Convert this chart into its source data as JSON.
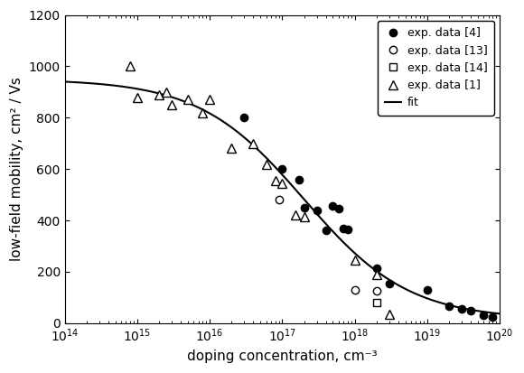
{
  "title": "",
  "xlabel": "doping concentration, cm⁻³",
  "ylabel": "low-field mobility, cm² / Vs",
  "xlim": [
    100000000000000.0,
    1e+20
  ],
  "ylim": [
    0,
    1200
  ],
  "yticks": [
    0,
    200,
    400,
    600,
    800,
    1000,
    1200
  ],
  "series4_x": [
    3e+16,
    1e+17,
    1.7e+17,
    2e+17,
    3e+17,
    4e+17,
    5e+17,
    6e+17,
    7e+17,
    8e+17,
    2e+18,
    3e+18,
    1e+19,
    2e+19,
    3e+19,
    4e+19,
    6e+19,
    8e+19
  ],
  "series4_y": [
    800,
    600,
    560,
    450,
    440,
    360,
    455,
    445,
    370,
    365,
    215,
    155,
    130,
    65,
    55,
    50,
    30,
    25
  ],
  "series13_x": [
    9e+16,
    1e+18,
    2e+18
  ],
  "series13_y": [
    480,
    130,
    125
  ],
  "series14_x": [
    2e+18
  ],
  "series14_y": [
    80
  ],
  "series1_x": [
    800000000000000.0,
    1000000000000000.0,
    2000000000000000.0,
    2500000000000000.0,
    3000000000000000.0,
    5000000000000000.0,
    8000000000000000.0,
    1e+16,
    2e+16,
    4e+16,
    6e+16,
    8e+16,
    1e+17,
    1.5e+17,
    2e+17,
    1e+18,
    2e+18,
    3e+18
  ],
  "series1_y": [
    1000,
    880,
    890,
    900,
    850,
    870,
    820,
    870,
    680,
    700,
    620,
    555,
    545,
    420,
    415,
    245,
    190,
    35
  ],
  "fit_mu_max": 950,
  "fit_mu_min": 15,
  "fit_N_ref": 2e+17,
  "fit_alpha": 0.6,
  "color_line": "#000000",
  "background": "#ffffff",
  "legend_labels": [
    "exp. data [4]",
    "exp. data [13]",
    "exp. data [14]",
    "exp. data [1]",
    "fit"
  ]
}
